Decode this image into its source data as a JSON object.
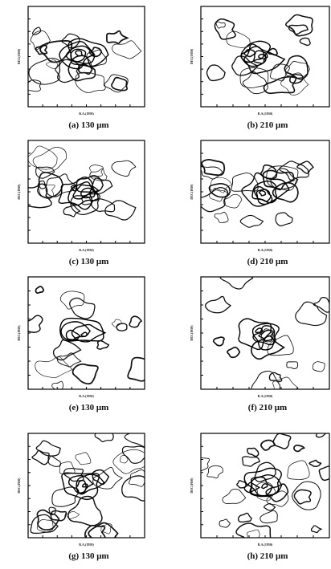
{
  "panels": [
    {
      "caption": "(a) 130 μm",
      "x_label": "R.A.(1950)",
      "y_label": "DEC(1950)"
    },
    {
      "caption": "(b) 210 μm",
      "x_label": "R.A.(1950)",
      "y_label": "DEC(1950)"
    },
    {
      "caption": "(c) 130 μm",
      "x_label": "R.A.(1950)",
      "y_label": "DEC(1950)"
    },
    {
      "caption": "(d) 210 μm",
      "x_label": "R.A.(1950)",
      "y_label": "DEC(1950)"
    },
    {
      "caption": "(e) 130 μm",
      "x_label": "R.A.(1950)",
      "y_label": "DEC(1950)"
    },
    {
      "caption": "(f) 210 μm",
      "x_label": "R.A.(1950)",
      "y_label": "DEC(1950)"
    },
    {
      "caption": "(g) 130 μm",
      "x_label": "R.A.(1950)",
      "y_label": "DEC(1950)"
    },
    {
      "caption": "(h) 210 μm",
      "x_label": "R.A.(1950)",
      "y_label": "DEC(1950)"
    }
  ]
}
